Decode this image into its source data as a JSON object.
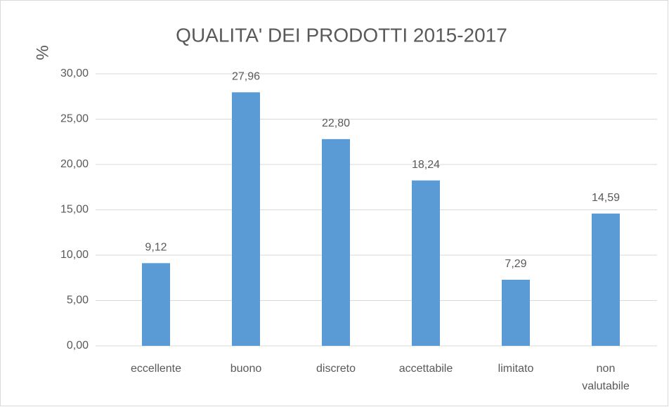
{
  "chart_data": {
    "type": "bar",
    "title": "QUALITA' DEI PRODOTTI  2015-2017",
    "y_label": "%",
    "categories": [
      "eccellente",
      "buono",
      "discreto",
      "accettabile",
      "limitato",
      "non valutabile"
    ],
    "values": [
      9.12,
      27.96,
      22.8,
      18.24,
      7.29,
      14.59
    ],
    "value_labels": [
      "9,12",
      "27,96",
      "22,80",
      "18,24",
      "7,29",
      "14,59"
    ],
    "color": "#5b9bd5",
    "ylim": [
      0,
      30
    ],
    "yticks": [
      {
        "value": 0,
        "label": "0,00"
      },
      {
        "value": 5,
        "label": "5,00"
      },
      {
        "value": 10,
        "label": "10,00"
      },
      {
        "value": 15,
        "label": "15,00"
      },
      {
        "value": 20,
        "label": "20,00"
      },
      {
        "value": 25,
        "label": "25,00"
      },
      {
        "value": 30,
        "label": "30,00"
      }
    ],
    "grid": true
  }
}
